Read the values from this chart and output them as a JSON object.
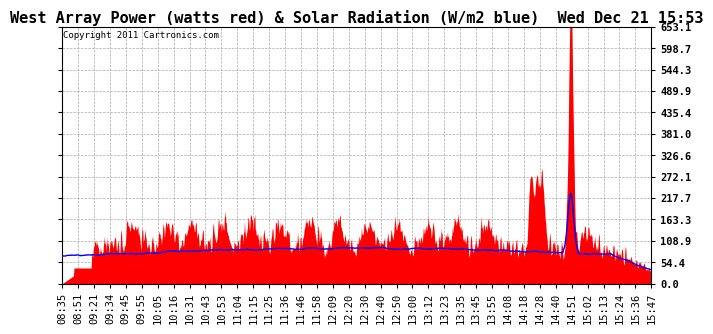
{
  "title": "West Array Power (watts red) & Solar Radiation (W/m2 blue)  Wed Dec 21 15:53",
  "copyright_text": "Copyright 2011 Cartronics.com",
  "yticks": [
    0.0,
    54.4,
    108.9,
    163.3,
    217.7,
    272.1,
    326.6,
    381.0,
    435.4,
    489.9,
    544.3,
    598.7,
    653.1
  ],
  "ylim": [
    0.0,
    653.1
  ],
  "x_labels": [
    "08:35",
    "08:51",
    "09:21",
    "09:34",
    "09:45",
    "09:55",
    "10:05",
    "10:16",
    "10:31",
    "10:43",
    "10:53",
    "11:04",
    "11:15",
    "11:25",
    "11:36",
    "11:46",
    "11:58",
    "12:09",
    "12:20",
    "12:30",
    "12:40",
    "12:50",
    "13:00",
    "13:12",
    "13:23",
    "13:35",
    "13:45",
    "13:55",
    "14:08",
    "14:18",
    "14:28",
    "14:40",
    "14:51",
    "15:02",
    "15:13",
    "15:24",
    "15:36",
    "15:47"
  ],
  "background_color": "#ffffff",
  "plot_bg_color": "#ffffff",
  "grid_color": "#aaaaaa",
  "red_color": "#ff0000",
  "blue_color": "#0000ff",
  "title_fontsize": 11,
  "tick_fontsize": 7.5,
  "copyright_fontsize": 6.5
}
